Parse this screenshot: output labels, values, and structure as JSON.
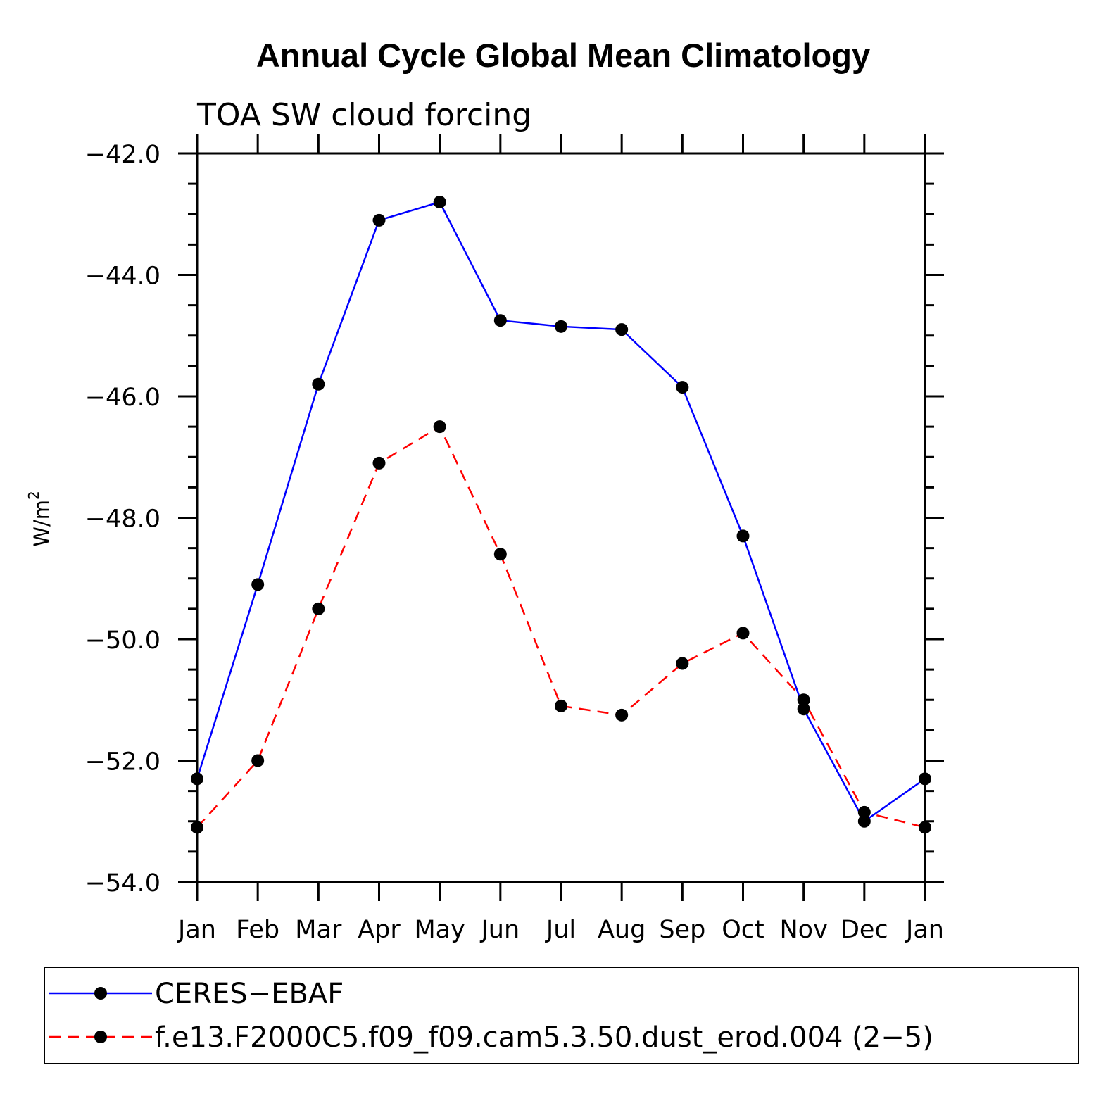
{
  "chart_data": {
    "type": "line",
    "title": "Annual Cycle Global Mean Climatology",
    "subtitle": "TOA SW cloud forcing",
    "ylabel": "W/m",
    "ylabel_superscript": "2",
    "xlabel": "",
    "categories": [
      "Jan",
      "Feb",
      "Mar",
      "Apr",
      "May",
      "Jun",
      "Jul",
      "Aug",
      "Sep",
      "Oct",
      "Nov",
      "Dec",
      "Jan"
    ],
    "ylim": [
      -54.0,
      -42.0
    ],
    "yticks": [
      -42.0,
      -44.0,
      -46.0,
      -48.0,
      -50.0,
      -52.0,
      -54.0
    ],
    "ytick_labels": [
      "−42.0",
      "−44.0",
      "−46.0",
      "−48.0",
      "−50.0",
      "−52.0",
      "−54.0"
    ],
    "grid": false,
    "legend_position": "bottom",
    "series": [
      {
        "name": "CERES−EBAF",
        "color": "#0000ff",
        "line_style": "solid",
        "marker": "filled-circle",
        "values": [
          -52.3,
          -49.1,
          -45.8,
          -43.1,
          -42.8,
          -44.75,
          -44.85,
          -44.9,
          -45.85,
          -48.3,
          -51.15,
          -53.0,
          -52.3
        ]
      },
      {
        "name": "f.e13.F2000C5.f09_f09.cam5.3.50.dust_erod.004 (2−5)",
        "color": "#ff0000",
        "line_style": "dashed",
        "marker": "filled-circle",
        "values": [
          -53.1,
          -52.0,
          -49.5,
          -47.1,
          -46.5,
          -48.6,
          -51.1,
          -51.25,
          -50.4,
          -49.9,
          -51.0,
          -52.85,
          -53.1
        ]
      }
    ]
  }
}
